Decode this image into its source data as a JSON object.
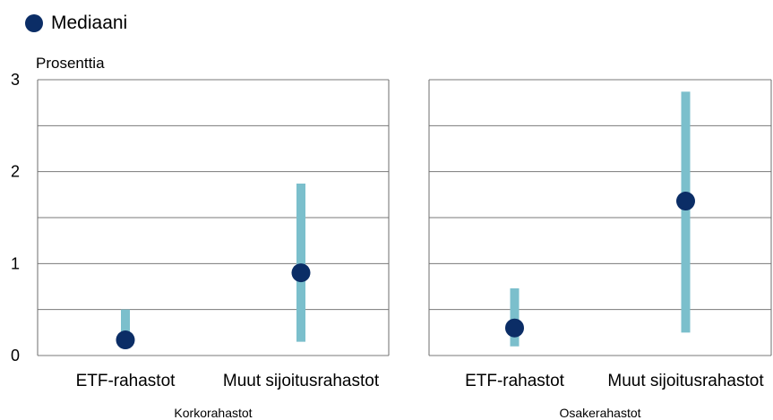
{
  "legend": {
    "label": "Mediaani",
    "color": "#0b2d66"
  },
  "colors": {
    "range": "#7bbfcc",
    "median": "#0b2d66",
    "grid": "#7a7a7a",
    "frame": "#6e6e6e"
  },
  "chart_data": {
    "type": "range_dot",
    "ylabel": "Prosenttia",
    "ylim": [
      0,
      3
    ],
    "yticks": [
      "0",
      "1",
      "2",
      "3"
    ],
    "grid": true,
    "legend_position": "top-left",
    "panels": [
      {
        "title": "Korkorahastot",
        "categories": [
          "ETF-rahastot",
          "Muut sijoitusrahastot"
        ],
        "low": [
          0.18,
          0.15
        ],
        "high": [
          0.5,
          1.87
        ],
        "median": [
          0.17,
          0.9
        ]
      },
      {
        "title": "Osakerahastot",
        "categories": [
          "ETF-rahastot",
          "Muut sijoitusrahastot"
        ],
        "low": [
          0.1,
          0.25
        ],
        "high": [
          0.73,
          2.87
        ],
        "median": [
          0.3,
          1.68
        ]
      }
    ]
  }
}
